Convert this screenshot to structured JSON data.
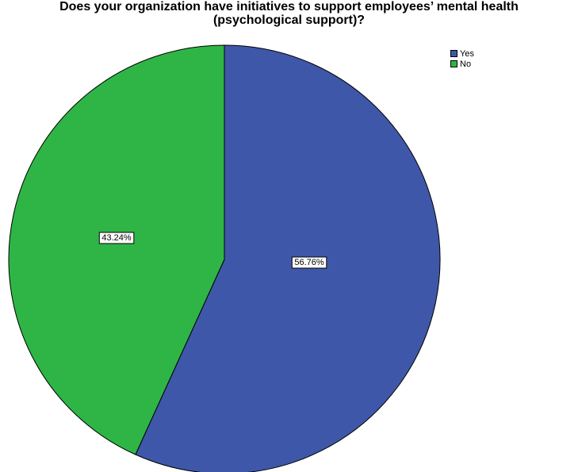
{
  "chart_data": {
    "type": "pie",
    "title_lines": [
      "Does your organization have initiatives to support employees’ mental health",
      "(psychological support)?"
    ],
    "categories": [
      "Yes",
      "No"
    ],
    "values": [
      56.76,
      43.24
    ],
    "data_labels": [
      "56.76%",
      "43.24%"
    ],
    "colors": [
      "#3f57a8",
      "#2fb546"
    ],
    "start_angle_deg": 0,
    "direction": "clockwise",
    "legend_position": "top-right",
    "legend": [
      {
        "label": "Yes",
        "color": "#3f57a8"
      },
      {
        "label": "No",
        "color": "#2fb546"
      }
    ]
  }
}
